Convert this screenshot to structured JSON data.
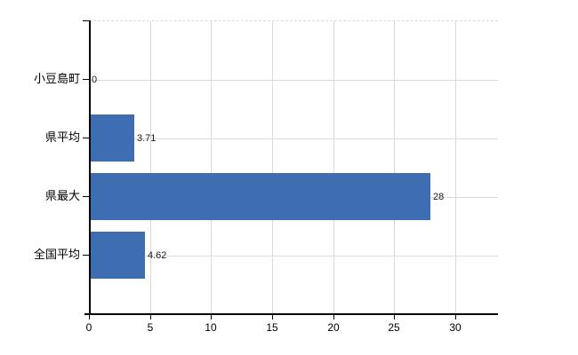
{
  "chart_data": {
    "type": "bar",
    "orientation": "horizontal",
    "title": "",
    "xlabel": "",
    "ylabel": "",
    "categories": [
      "小豆島町",
      "県平均",
      "県最大",
      "全国平均"
    ],
    "values": [
      0,
      3.71,
      28,
      4.62
    ],
    "value_labels": [
      "0",
      "3.71",
      "28",
      "4.62"
    ],
    "x_ticks": [
      0,
      5,
      10,
      15,
      20,
      25,
      30
    ],
    "x_tick_labels": [
      "0",
      "5",
      "10",
      "15",
      "20",
      "25",
      "30"
    ],
    "xlim": [
      0,
      33.5
    ],
    "grid": true,
    "legend": false,
    "bar_color": "#3e6db1",
    "axis_color": "#000000",
    "gridline_color": "#d9d9d9",
    "background_color": "#ffffff",
    "label_color": "#1a1a1a"
  }
}
